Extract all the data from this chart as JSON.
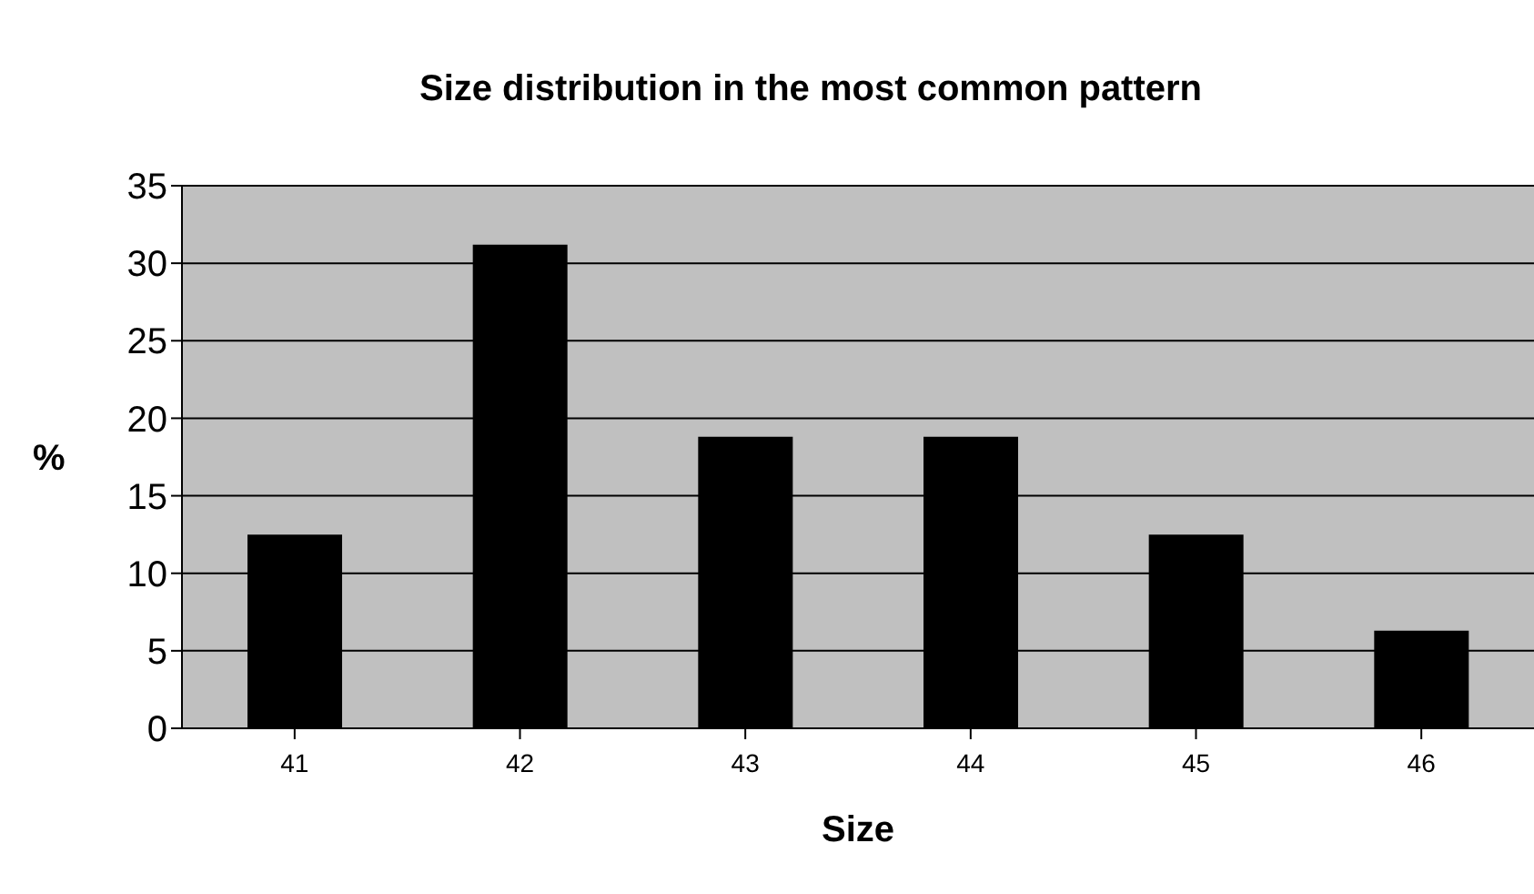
{
  "chart_data": {
    "type": "bar",
    "title": "Size distribution in the most common pattern",
    "xlabel": "Size",
    "ylabel": "%",
    "categories": [
      "41",
      "42",
      "43",
      "44",
      "45",
      "46"
    ],
    "values": [
      12.5,
      31.2,
      18.8,
      18.8,
      12.5,
      6.3
    ],
    "color": "#000000",
    "ylim": [
      0,
      35
    ],
    "yticks": [
      0,
      5,
      10,
      15,
      20,
      25,
      30,
      35
    ],
    "grid": "y"
  }
}
